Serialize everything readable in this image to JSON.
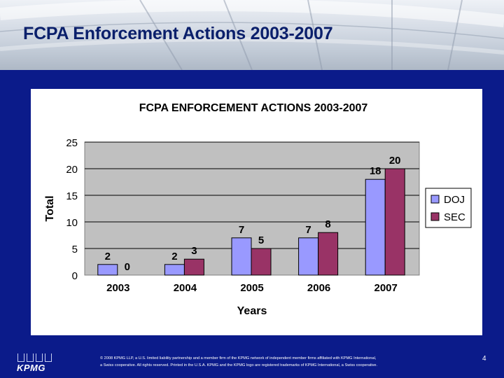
{
  "slide": {
    "title": "FCPA Enforcement Actions 2003-2007",
    "page_number": "4"
  },
  "footer": {
    "logo_text": "KPMG",
    "copyright_line1": "© 2008 KPMG LLP, a U.S. limited liability partnership and a member firm of the KPMG network of independent member firms affiliated with KPMG International,",
    "copyright_line2": "a Swiss cooperative. All rights reserved. Printed in the U.S.A. KPMG and the KPMG logo are registered trademarks of KPMG International, a Swiss cooperative."
  },
  "colors": {
    "header_title": "#0a1f6b",
    "panel_bg": "#0b1b8a",
    "doj": "#9999ff",
    "sec": "#993366",
    "plot_bg": "#c0c0c0"
  },
  "chart_data": {
    "type": "bar",
    "title": "FCPA ENFORCEMENT ACTIONS 2003-2007",
    "xlabel": "Years",
    "ylabel": "Total",
    "categories": [
      "2003",
      "2004",
      "2005",
      "2006",
      "2007"
    ],
    "series": [
      {
        "name": "DOJ",
        "values": [
          2,
          2,
          7,
          7,
          18
        ],
        "color": "#9999ff"
      },
      {
        "name": "SEC",
        "values": [
          0,
          3,
          5,
          8,
          20
        ],
        "color": "#993366"
      }
    ],
    "ylim": [
      0,
      25
    ],
    "yticks": [
      0,
      5,
      10,
      15,
      20,
      25
    ],
    "grid": true,
    "legend_position": "right"
  }
}
